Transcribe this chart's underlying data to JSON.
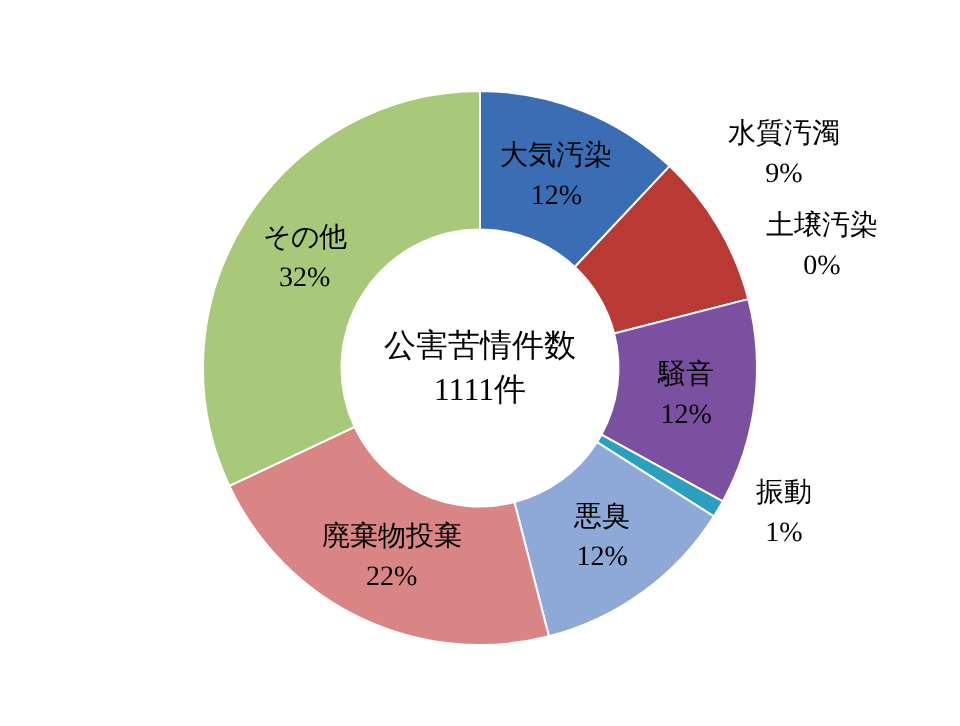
{
  "chart_data": {
    "type": "donut",
    "title": "公害苦情件数",
    "subtitle": "1111件",
    "categories": [
      "大気汚染",
      "水質汚濁",
      "土壌汚染",
      "騒音",
      "振動",
      "悪臭",
      "廃棄物投棄",
      "その他"
    ],
    "values": [
      12,
      9,
      0,
      12,
      1,
      12,
      22,
      32
    ],
    "value_labels": [
      "12%",
      "9%",
      "0%",
      "12%",
      "1%",
      "12%",
      "22%",
      "32%"
    ],
    "colors": [
      "#3b6db4",
      "#b93a34",
      "#8aa64a",
      "#7b50a1",
      "#2a9fbf",
      "#8ea8d8",
      "#d98585",
      "#a8c87a"
    ],
    "legend": false
  }
}
